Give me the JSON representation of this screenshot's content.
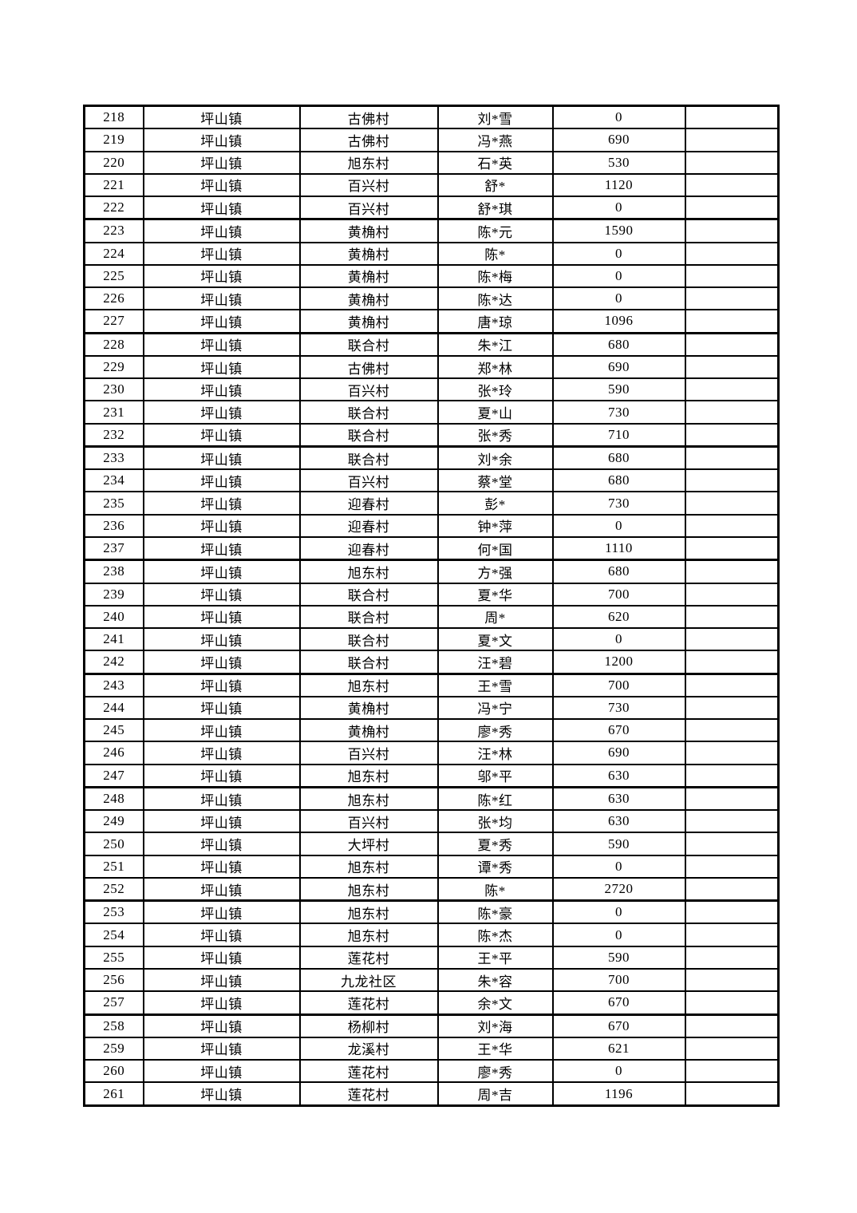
{
  "page": {
    "background_color": "#ffffff",
    "text_color": "#000000",
    "grid_line_color": "#000000"
  },
  "table": {
    "rows": [
      [
        "218",
        "坪山镇",
        "古佛村",
        "刘*雪",
        "0",
        ""
      ],
      [
        "219",
        "坪山镇",
        "古佛村",
        "冯*燕",
        "690",
        ""
      ],
      [
        "220",
        "坪山镇",
        "旭东村",
        "石*英",
        "530",
        ""
      ],
      [
        "221",
        "坪山镇",
        "百兴村",
        "舒*",
        "1120",
        ""
      ],
      [
        "222",
        "坪山镇",
        "百兴村",
        "舒*琪",
        "0",
        ""
      ],
      [
        "223",
        "坪山镇",
        "黄桷村",
        "陈*元",
        "1590",
        ""
      ],
      [
        "224",
        "坪山镇",
        "黄桷村",
        "陈*",
        "0",
        ""
      ],
      [
        "225",
        "坪山镇",
        "黄桷村",
        "陈*梅",
        "0",
        ""
      ],
      [
        "226",
        "坪山镇",
        "黄桷村",
        "陈*达",
        "0",
        ""
      ],
      [
        "227",
        "坪山镇",
        "黄桷村",
        "唐*琼",
        "1096",
        ""
      ],
      [
        "228",
        "坪山镇",
        "联合村",
        "朱*江",
        "680",
        ""
      ],
      [
        "229",
        "坪山镇",
        "古佛村",
        "郑*林",
        "690",
        ""
      ],
      [
        "230",
        "坪山镇",
        "百兴村",
        "张*玲",
        "590",
        ""
      ],
      [
        "231",
        "坪山镇",
        "联合村",
        "夏*山",
        "730",
        ""
      ],
      [
        "232",
        "坪山镇",
        "联合村",
        "张*秀",
        "710",
        ""
      ],
      [
        "233",
        "坪山镇",
        "联合村",
        "刘*余",
        "680",
        ""
      ],
      [
        "234",
        "坪山镇",
        "百兴村",
        "蔡*堂",
        "680",
        ""
      ],
      [
        "235",
        "坪山镇",
        "迎春村",
        "彭*",
        "730",
        ""
      ],
      [
        "236",
        "坪山镇",
        "迎春村",
        "钟*萍",
        "0",
        ""
      ],
      [
        "237",
        "坪山镇",
        "迎春村",
        "何*国",
        "1110",
        ""
      ],
      [
        "238",
        "坪山镇",
        "旭东村",
        "方*强",
        "680",
        ""
      ],
      [
        "239",
        "坪山镇",
        "联合村",
        "夏*华",
        "700",
        ""
      ],
      [
        "240",
        "坪山镇",
        "联合村",
        "周*",
        "620",
        ""
      ],
      [
        "241",
        "坪山镇",
        "联合村",
        "夏*文",
        "0",
        ""
      ],
      [
        "242",
        "坪山镇",
        "联合村",
        "汪*碧",
        "1200",
        ""
      ],
      [
        "243",
        "坪山镇",
        "旭东村",
        "王*雪",
        "700",
        ""
      ],
      [
        "244",
        "坪山镇",
        "黄桷村",
        "冯*宁",
        "730",
        ""
      ],
      [
        "245",
        "坪山镇",
        "黄桷村",
        "廖*秀",
        "670",
        ""
      ],
      [
        "246",
        "坪山镇",
        "百兴村",
        "汪*林",
        "690",
        ""
      ],
      [
        "247",
        "坪山镇",
        "旭东村",
        "邬*平",
        "630",
        ""
      ],
      [
        "248",
        "坪山镇",
        "旭东村",
        "陈*红",
        "630",
        ""
      ],
      [
        "249",
        "坪山镇",
        "百兴村",
        "张*均",
        "630",
        ""
      ],
      [
        "250",
        "坪山镇",
        "大坪村",
        "夏*秀",
        "590",
        ""
      ],
      [
        "251",
        "坪山镇",
        "旭东村",
        "谭*秀",
        "0",
        ""
      ],
      [
        "252",
        "坪山镇",
        "旭东村",
        "陈*",
        "2720",
        ""
      ],
      [
        "253",
        "坪山镇",
        "旭东村",
        "陈*豪",
        "0",
        ""
      ],
      [
        "254",
        "坪山镇",
        "旭东村",
        "陈*杰",
        "0",
        ""
      ],
      [
        "255",
        "坪山镇",
        "莲花村",
        "王*平",
        "590",
        ""
      ],
      [
        "256",
        "坪山镇",
        "九龙社区",
        "朱*容",
        "700",
        ""
      ],
      [
        "257",
        "坪山镇",
        "莲花村",
        "余*文",
        "670",
        ""
      ],
      [
        "258",
        "坪山镇",
        "杨柳村",
        "刘*海",
        "670",
        ""
      ],
      [
        "259",
        "坪山镇",
        "龙溪村",
        "王*华",
        "621",
        ""
      ],
      [
        "260",
        "坪山镇",
        "莲花村",
        "廖*秀",
        "0",
        ""
      ],
      [
        "261",
        "坪山镇",
        "莲花村",
        "周*吉",
        "1196",
        ""
      ]
    ]
  }
}
